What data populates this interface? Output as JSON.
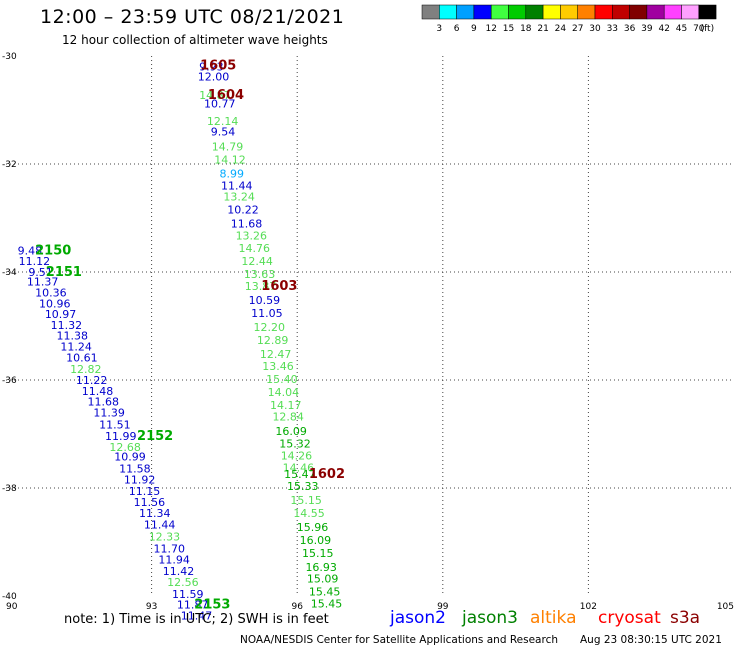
{
  "header": {
    "title": "12:00 – 23:59 UTC 08/21/2021",
    "subtitle": "12 hour collection of altimeter wave heights"
  },
  "legend": {
    "unit": "(ft)",
    "bins": [
      {
        "label": "3",
        "color": "#808080"
      },
      {
        "label": "6",
        "color": "#00ffff"
      },
      {
        "label": "9",
        "color": "#00a0ff"
      },
      {
        "label": "12",
        "color": "#0000ff"
      },
      {
        "label": "15",
        "color": "#40ff40"
      },
      {
        "label": "18",
        "color": "#00cc00"
      },
      {
        "label": "21",
        "color": "#008000"
      },
      {
        "label": "24",
        "color": "#ffff00"
      },
      {
        "label": "27",
        "color": "#ffcc00"
      },
      {
        "label": "30",
        "color": "#ff8000"
      },
      {
        "label": "33",
        "color": "#ff0000"
      },
      {
        "label": "36",
        "color": "#c00000"
      },
      {
        "label": "39",
        "color": "#800000"
      },
      {
        "label": "42",
        "color": "#a000a0"
      },
      {
        "label": "45",
        "color": "#ff40ff"
      },
      {
        "label": "70",
        "color": "#ffa0ff"
      },
      {
        "label": "",
        "color": "#000000"
      }
    ]
  },
  "footer": {
    "note": "note: 1) Time is in UTC; 2) SWH is in feet",
    "credit": "NOAA/NESDIS Center for Satellite Applications and Research",
    "timestamp": "Aug 23 08:30:15 UTC 2021",
    "missions": [
      {
        "name": "jason2",
        "color": "#0000ff"
      },
      {
        "name": "jason3",
        "color": "#008000"
      },
      {
        "name": "altika",
        "color": "#ff8000"
      },
      {
        "name": "cryosat",
        "color": "#ff0000"
      },
      {
        "name": "s3a",
        "color": "#8b0000"
      }
    ]
  },
  "colors": {
    "green": "#00aa00",
    "lightgreen": "#55dd55",
    "blue": "#0000cc",
    "cyan": "#00aaff",
    "darkred": "#8b0000"
  },
  "chart_data": {
    "type": "scatter",
    "xlim": [
      90,
      105
    ],
    "ylim": [
      -40,
      -30
    ],
    "xticks": [
      90,
      93,
      96,
      99,
      102,
      105
    ],
    "yticks": [
      -30,
      -32,
      -34,
      -36,
      -38,
      -40
    ],
    "grid": true,
    "points": [
      {
        "x": 93.98,
        "y": -30.19,
        "v": "9.93",
        "c": "blue"
      },
      {
        "x": 93.95,
        "y": -30.38,
        "v": "12.00",
        "c": "blue"
      },
      {
        "x": 93.98,
        "y": -30.72,
        "v": "14.87",
        "c": "lightgreen"
      },
      {
        "x": 94.08,
        "y": -30.88,
        "v": "10.77",
        "c": "blue"
      },
      {
        "x": 94.14,
        "y": -31.2,
        "v": "12.14",
        "c": "lightgreen"
      },
      {
        "x": 94.22,
        "y": -31.4,
        "v": "9.54",
        "c": "blue"
      },
      {
        "x": 94.24,
        "y": -31.68,
        "v": "14.79",
        "c": "lightgreen"
      },
      {
        "x": 94.29,
        "y": -31.92,
        "v": "14.12",
        "c": "lightgreen"
      },
      {
        "x": 94.4,
        "y": -32.18,
        "v": "8.99",
        "c": "cyan"
      },
      {
        "x": 94.43,
        "y": -32.4,
        "v": "11.44",
        "c": "blue"
      },
      {
        "x": 94.48,
        "y": -32.6,
        "v": "13.24",
        "c": "lightgreen"
      },
      {
        "x": 94.56,
        "y": -32.84,
        "v": "10.22",
        "c": "blue"
      },
      {
        "x": 94.63,
        "y": -33.1,
        "v": "11.68",
        "c": "blue"
      },
      {
        "x": 94.73,
        "y": -33.32,
        "v": "13.26",
        "c": "lightgreen"
      },
      {
        "x": 94.79,
        "y": -33.56,
        "v": "14.76",
        "c": "lightgreen"
      },
      {
        "x": 94.85,
        "y": -33.8,
        "v": "12.44",
        "c": "lightgreen"
      },
      {
        "x": 94.9,
        "y": -34.04,
        "v": "13.63",
        "c": "lightgreen"
      },
      {
        "x": 94.92,
        "y": -34.26,
        "v": "13.87",
        "c": "lightgreen"
      },
      {
        "x": 95.0,
        "y": -34.52,
        "v": "10.59",
        "c": "blue"
      },
      {
        "x": 95.05,
        "y": -34.76,
        "v": "11.05",
        "c": "blue"
      },
      {
        "x": 95.1,
        "y": -35.02,
        "v": "12.20",
        "c": "lightgreen"
      },
      {
        "x": 95.17,
        "y": -35.26,
        "v": "12.89",
        "c": "lightgreen"
      },
      {
        "x": 95.23,
        "y": -35.52,
        "v": "12.47",
        "c": "lightgreen"
      },
      {
        "x": 95.28,
        "y": -35.74,
        "v": "13.46",
        "c": "lightgreen"
      },
      {
        "x": 95.36,
        "y": -35.98,
        "v": "15.40",
        "c": "lightgreen"
      },
      {
        "x": 95.39,
        "y": -36.22,
        "v": "14.04",
        "c": "lightgreen"
      },
      {
        "x": 95.44,
        "y": -36.46,
        "v": "14.17",
        "c": "lightgreen"
      },
      {
        "x": 95.49,
        "y": -36.68,
        "v": "12.84",
        "c": "lightgreen"
      },
      {
        "x": 95.55,
        "y": -36.94,
        "v": "16.09",
        "c": "green"
      },
      {
        "x": 95.63,
        "y": -37.18,
        "v": "15.32",
        "c": "green"
      },
      {
        "x": 95.66,
        "y": -37.4,
        "v": "14.26",
        "c": "lightgreen"
      },
      {
        "x": 95.7,
        "y": -37.62,
        "v": "14.46",
        "c": "lightgreen"
      },
      {
        "x": 95.73,
        "y": -37.74,
        "v": "15.47",
        "c": "green"
      },
      {
        "x": 95.79,
        "y": -37.96,
        "v": "15.33",
        "c": "green"
      },
      {
        "x": 95.86,
        "y": -38.22,
        "v": "15.15",
        "c": "lightgreen"
      },
      {
        "x": 95.92,
        "y": -38.46,
        "v": "14.55",
        "c": "lightgreen"
      },
      {
        "x": 95.99,
        "y": -38.72,
        "v": "15.96",
        "c": "green"
      },
      {
        "x": 96.05,
        "y": -38.96,
        "v": "16.09",
        "c": "green"
      },
      {
        "x": 96.1,
        "y": -39.2,
        "v": "15.15",
        "c": "green"
      },
      {
        "x": 96.17,
        "y": -39.46,
        "v": "16.93",
        "c": "green"
      },
      {
        "x": 96.2,
        "y": -39.68,
        "v": "15.09",
        "c": "green"
      },
      {
        "x": 96.24,
        "y": -39.92,
        "v": "15.45",
        "c": "green"
      },
      {
        "x": 96.28,
        "y": -40.14,
        "v": "15.45",
        "c": "green"
      },
      {
        "x": 90.24,
        "y": -33.6,
        "v": "9.48",
        "c": "blue"
      },
      {
        "x": 90.26,
        "y": -33.8,
        "v": "11.12",
        "c": "blue"
      },
      {
        "x": 90.46,
        "y": -34.0,
        "v": "9.51",
        "c": "blue"
      },
      {
        "x": 90.43,
        "y": -34.18,
        "v": "11.37",
        "c": "blue"
      },
      {
        "x": 90.6,
        "y": -34.38,
        "v": "10.36",
        "c": "blue"
      },
      {
        "x": 90.68,
        "y": -34.58,
        "v": "10.96",
        "c": "blue"
      },
      {
        "x": 90.8,
        "y": -34.78,
        "v": "10.97",
        "c": "blue"
      },
      {
        "x": 90.92,
        "y": -34.98,
        "v": "11.32",
        "c": "blue"
      },
      {
        "x": 91.04,
        "y": -35.18,
        "v": "11.38",
        "c": "blue"
      },
      {
        "x": 91.12,
        "y": -35.38,
        "v": "11.24",
        "c": "blue"
      },
      {
        "x": 91.24,
        "y": -35.58,
        "v": "10.61",
        "c": "blue"
      },
      {
        "x": 91.32,
        "y": -35.8,
        "v": "12.82",
        "c": "lightgreen"
      },
      {
        "x": 91.44,
        "y": -36.0,
        "v": "11.22",
        "c": "blue"
      },
      {
        "x": 91.56,
        "y": -36.2,
        "v": "11.48",
        "c": "blue"
      },
      {
        "x": 91.68,
        "y": -36.4,
        "v": "11.68",
        "c": "blue"
      },
      {
        "x": 91.8,
        "y": -36.6,
        "v": "11.39",
        "c": "blue"
      },
      {
        "x": 91.92,
        "y": -36.82,
        "v": "11.51",
        "c": "blue"
      },
      {
        "x": 92.04,
        "y": -37.04,
        "v": "11.99",
        "c": "blue"
      },
      {
        "x": 92.13,
        "y": -37.24,
        "v": "12.68",
        "c": "lightgreen"
      },
      {
        "x": 92.23,
        "y": -37.42,
        "v": "10.99",
        "c": "blue"
      },
      {
        "x": 92.33,
        "y": -37.64,
        "v": "11.58",
        "c": "blue"
      },
      {
        "x": 92.43,
        "y": -37.84,
        "v": "11.92",
        "c": "blue"
      },
      {
        "x": 92.53,
        "y": -38.06,
        "v": "11.15",
        "c": "blue"
      },
      {
        "x": 92.63,
        "y": -38.26,
        "v": "11.56",
        "c": "blue"
      },
      {
        "x": 92.74,
        "y": -38.46,
        "v": "11.34",
        "c": "blue"
      },
      {
        "x": 92.84,
        "y": -38.68,
        "v": "11.44",
        "c": "blue"
      },
      {
        "x": 92.94,
        "y": -38.9,
        "v": "12.33",
        "c": "lightgreen"
      },
      {
        "x": 93.04,
        "y": -39.12,
        "v": "11.70",
        "c": "blue"
      },
      {
        "x": 93.14,
        "y": -39.32,
        "v": "11.94",
        "c": "blue"
      },
      {
        "x": 93.23,
        "y": -39.54,
        "v": "11.42",
        "c": "blue"
      },
      {
        "x": 93.32,
        "y": -39.74,
        "v": "12.56",
        "c": "lightgreen"
      },
      {
        "x": 93.42,
        "y": -39.96,
        "v": "11.59",
        "c": "blue"
      },
      {
        "x": 93.52,
        "y": -40.16,
        "v": "11.87",
        "c": "blue"
      },
      {
        "x": 93.6,
        "y": -40.36,
        "v": "11.47",
        "c": "blue"
      }
    ],
    "time_labels": [
      {
        "x": 94.0,
        "y": -30.18,
        "t": "1605",
        "c": "darkred"
      },
      {
        "x": 94.16,
        "y": -30.72,
        "t": "1604",
        "c": "darkred"
      },
      {
        "x": 95.26,
        "y": -34.26,
        "t": "1603",
        "c": "darkred"
      },
      {
        "x": 96.24,
        "y": -37.74,
        "t": "1602",
        "c": "darkred"
      },
      {
        "x": 90.6,
        "y": -33.6,
        "t": "2150",
        "c": "green"
      },
      {
        "x": 90.82,
        "y": -34.0,
        "t": "2151",
        "c": "green"
      },
      {
        "x": 92.7,
        "y": -37.04,
        "t": "2152",
        "c": "green"
      },
      {
        "x": 93.88,
        "y": -40.16,
        "t": "2153",
        "c": "green"
      }
    ]
  }
}
